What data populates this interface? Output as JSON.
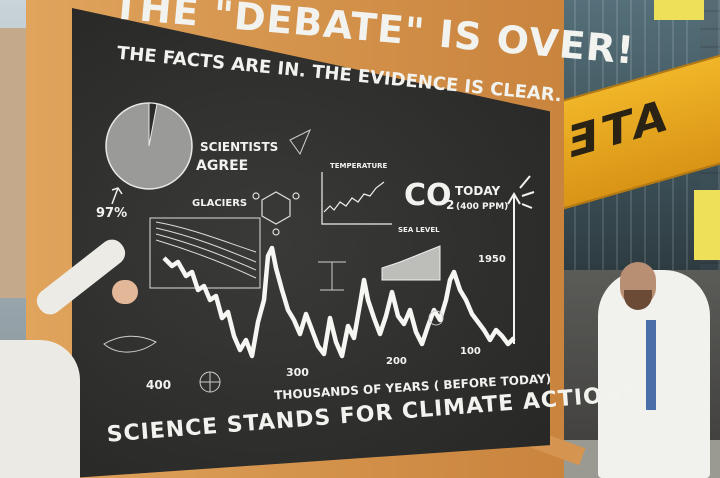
{
  "board": {
    "headline": "THE \"DEBATE\" IS OVER!",
    "subhead": "THE FACTS ARE IN. THE EVIDENCE IS CLEAR.",
    "scientists_line1": "SCIENTISTS",
    "scientists_line2": "AGREE",
    "consensus_percent": "97%",
    "glaciers_label": "GLACIERS",
    "temperature_label": "TEMPERATURE",
    "sea_level_label": "SEA LEVEL",
    "co2_label": "CO",
    "co2_subscript": "2",
    "today_label": "TODAY",
    "today_ppm": "(400 PPM)",
    "year_1950": "1950",
    "tick_400": "400",
    "tick_300": "300",
    "tick_200": "200",
    "tick_100": "100",
    "x_axis_label": "THOUSANDS OF YEARS ( BEFORE TODAY)",
    "footer": "SCIENCE STANDS FOR CLIMATE ACTION!"
  },
  "banner": {
    "text": "ATE"
  },
  "colors": {
    "chalkboard": "#2b2b2a",
    "chalk": "#f2f2ee",
    "wood_frame": "#d4934c",
    "banner": "#e8a822",
    "flag": "#f1e85a"
  }
}
